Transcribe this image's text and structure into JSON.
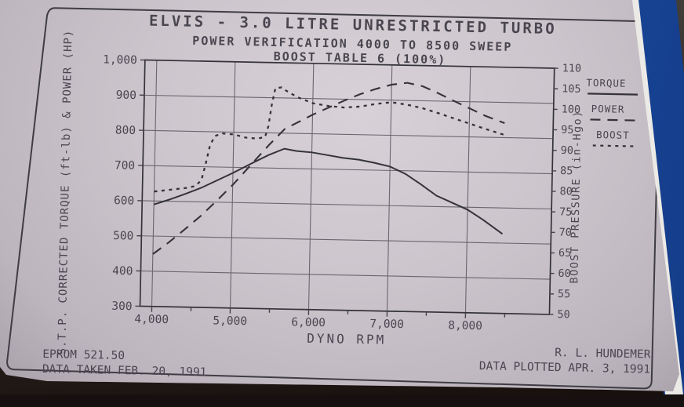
{
  "photo": {
    "background_color": "#2a2421",
    "binder_color": "#1d50a9",
    "paper_color": "#ccc5cc",
    "ink_color": "#4a4650"
  },
  "titles": {
    "line1": "ELVIS - 3.0 LITRE UNRESTRICTED TURBO",
    "line2": "POWER VERIFICATION 4000 TO 8500 SWEEP",
    "line3": "BOOST TABLE 6 (100%)"
  },
  "legend": {
    "items": [
      {
        "label": "TORQUE",
        "style": "solid"
      },
      {
        "label": "POWER",
        "style": "dashed"
      },
      {
        "label": "BOOST",
        "style": "dotted"
      }
    ]
  },
  "footer": {
    "eprom": "EPROM 521.50",
    "data_taken": "DATA TAKEN FEB. 20, 1991",
    "author": "R. L. HUNDEMER",
    "data_plotted": "DATA PLOTTED APR. 3, 1991"
  },
  "chart_data": {
    "type": "line",
    "title": "ELVIS - 3.0 LITRE UNRESTRICTED TURBO",
    "subtitle": "POWER VERIFICATION 4000 TO 8500 SWEEP / BOOST TABLE 6 (100%)",
    "grid": true,
    "legend_position": "top-right",
    "x_axis": {
      "label": "DYNO RPM",
      "min": 3850,
      "max": 9070,
      "gridlines": [
        4000,
        5000,
        6000,
        7000,
        8000
      ],
      "tick_labels": [
        "4,000",
        "5,000",
        "6,000",
        "7,000",
        "8,000"
      ],
      "minor_ticks": [
        4500,
        5500,
        6500,
        7500,
        8500
      ]
    },
    "y_left": {
      "label": "S.T.P. CORRECTED TORQUE (ft-lb) & POWER (HP)",
      "min": 300,
      "max": 1000,
      "step": 100,
      "tick_labels": [
        "1,000",
        "900",
        "800",
        "700",
        "600",
        "500",
        "400",
        "300"
      ]
    },
    "y_right": {
      "label": "BOOST PRESSURE (in-Hgo)",
      "min": 50,
      "max": 110,
      "step": 5,
      "tick_labels": [
        "110",
        "105",
        "100",
        "95",
        "90",
        "85",
        "80",
        "75",
        "70",
        "65",
        "60",
        "55",
        "50"
      ]
    },
    "series": [
      {
        "name": "TORQUE",
        "axis": "left",
        "dash": "solid",
        "units": "ft-lb",
        "points": [
          [
            4000,
            590
          ],
          [
            4200,
            605
          ],
          [
            4400,
            622
          ],
          [
            4600,
            640
          ],
          [
            4800,
            662
          ],
          [
            5000,
            684
          ],
          [
            5250,
            714
          ],
          [
            5450,
            737
          ],
          [
            5650,
            756
          ],
          [
            5800,
            750
          ],
          [
            6000,
            747
          ],
          [
            6200,
            740
          ],
          [
            6400,
            733
          ],
          [
            6600,
            729
          ],
          [
            6800,
            721
          ],
          [
            7000,
            711
          ],
          [
            7200,
            691
          ],
          [
            7400,
            662
          ],
          [
            7600,
            631
          ],
          [
            7800,
            612
          ],
          [
            8000,
            593
          ],
          [
            8200,
            565
          ],
          [
            8450,
            526
          ]
        ]
      },
      {
        "name": "POWER",
        "axis": "left",
        "dash": "dashed",
        "units": "HP",
        "points": [
          [
            4000,
            449
          ],
          [
            4200,
            483
          ],
          [
            4400,
            521
          ],
          [
            4600,
            560
          ],
          [
            4800,
            604
          ],
          [
            5000,
            650
          ],
          [
            5250,
            714
          ],
          [
            5450,
            765
          ],
          [
            5650,
            812
          ],
          [
            5800,
            830
          ],
          [
            6000,
            854
          ],
          [
            6200,
            875
          ],
          [
            6400,
            896
          ],
          [
            6600,
            915
          ],
          [
            6800,
            931
          ],
          [
            7000,
            944
          ],
          [
            7200,
            950
          ],
          [
            7400,
            941
          ],
          [
            7600,
            922
          ],
          [
            7800,
            901
          ],
          [
            8000,
            881
          ],
          [
            8200,
            861
          ],
          [
            8450,
            841
          ]
        ]
      },
      {
        "name": "BOOST",
        "axis": "right",
        "dash": "dotted",
        "units": "in-Hgo",
        "points": [
          [
            4000,
            78
          ],
          [
            4200,
            78.5
          ],
          [
            4400,
            79
          ],
          [
            4520,
            79.5
          ],
          [
            4600,
            81
          ],
          [
            4650,
            85
          ],
          [
            4700,
            89.5
          ],
          [
            4760,
            91.8
          ],
          [
            4850,
            92.5
          ],
          [
            5000,
            92.3
          ],
          [
            5150,
            91.6
          ],
          [
            5300,
            91.4
          ],
          [
            5400,
            91.8
          ],
          [
            5440,
            94.5
          ],
          [
            5480,
            100
          ],
          [
            5520,
            103.8
          ],
          [
            5600,
            104
          ],
          [
            5650,
            103.3
          ],
          [
            5800,
            101.7
          ],
          [
            6000,
            100.3
          ],
          [
            6200,
            99.7
          ],
          [
            6400,
            99.4
          ],
          [
            6600,
            99.7
          ],
          [
            6800,
            100.4
          ],
          [
            7000,
            100.9
          ],
          [
            7200,
            100.4
          ],
          [
            7400,
            99.6
          ],
          [
            7600,
            98.5
          ],
          [
            7800,
            97.3
          ],
          [
            8000,
            96.1
          ],
          [
            8200,
            94.9
          ],
          [
            8450,
            93.5
          ]
        ]
      }
    ]
  }
}
